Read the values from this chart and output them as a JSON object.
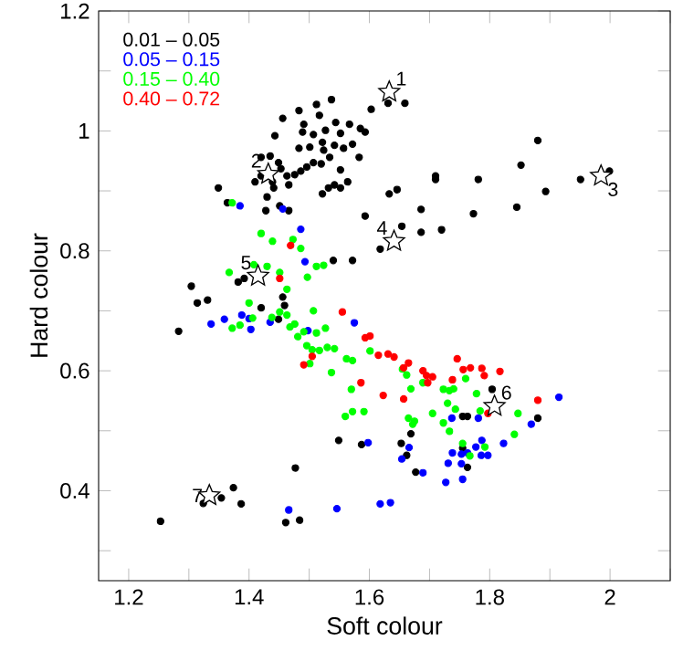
{
  "chart_data": {
    "type": "scatter",
    "xlabel": "Soft colour",
    "ylabel": "Hard colour",
    "xlim": [
      1.15,
      2.1
    ],
    "ylim": [
      0.25,
      1.2
    ],
    "xticks": [
      1.2,
      {
        "value": 1.3,
        "label": null
      },
      1.4,
      {
        "value": 1.5,
        "label": null
      },
      1.6,
      {
        "value": 1.7,
        "label": null
      },
      1.8,
      {
        "value": 1.9,
        "label": null
      },
      2,
      {
        "value": 2.1,
        "label": null
      }
    ],
    "yticks": [
      {
        "value": 0.3,
        "label": null
      },
      0.4,
      {
        "value": 0.5,
        "label": null
      },
      0.6,
      {
        "value": 0.7,
        "label": null
      },
      0.8,
      {
        "value": 0.9,
        "label": null
      },
      1,
      {
        "value": 1.1,
        "label": null
      },
      1.2
    ],
    "legend": "top left",
    "grid": false,
    "series": [
      {
        "name": "0.01 – 0.05",
        "color": "#000000",
        "marker": "circle",
        "x": [
          1.483,
          1.512,
          1.537,
          1.517,
          1.491,
          1.456,
          1.443,
          1.489,
          1.507,
          1.527,
          1.544,
          1.567,
          1.585,
          1.552,
          1.483,
          1.501,
          1.522,
          1.524,
          1.542,
          1.557,
          1.572,
          1.583,
          1.42,
          1.435,
          1.449,
          1.453,
          1.42,
          1.41,
          1.439,
          1.463,
          1.476,
          1.486,
          1.496,
          1.507,
          1.52,
          1.534,
          1.552,
          1.564,
          1.542,
          1.532,
          1.522,
          1.552,
          1.466,
          1.441,
          1.43,
          1.428,
          1.451,
          1.466,
          1.349,
          1.364,
          1.54,
          1.572,
          1.382,
          1.392,
          1.304,
          1.603,
          1.631,
          1.659,
          1.593,
          1.633,
          1.646,
          1.71,
          1.71,
          1.781,
          1.852,
          1.88,
          1.893,
          1.951,
          1.999,
          1.593,
          1.654,
          1.618,
          1.686,
          1.686,
          1.72,
          1.773,
          1.845,
          1.314,
          1.331,
          1.283,
          1.42,
          1.456,
          1.459,
          1.449,
          1.549,
          1.587,
          1.477,
          1.374,
          1.354,
          1.324,
          1.387,
          1.253,
          1.461,
          1.484,
          1.804,
          1.755,
          1.763,
          1.88,
          1.669,
          1.653,
          1.662,
          1.677,
          1.755,
          1.763
        ],
        "values": [
          1.034,
          1.044,
          1.052,
          1.026,
          1.011,
          1.021,
          0.992,
          0.998,
          0.994,
          1.001,
          1.014,
          1.011,
          1.004,
          0.996,
          0.971,
          0.973,
          0.981,
          0.968,
          0.976,
          0.971,
          0.978,
          0.956,
          0.956,
          0.958,
          0.947,
          0.937,
          0.925,
          0.915,
          0.915,
          0.925,
          0.927,
          0.933,
          0.94,
          0.947,
          0.945,
          0.956,
          0.935,
          0.915,
          0.91,
          0.905,
          0.895,
          0.905,
          0.91,
          0.905,
          0.89,
          0.867,
          0.875,
          0.867,
          0.905,
          0.88,
          0.784,
          0.784,
          0.748,
          0.754,
          0.741,
          1.036,
          1.046,
          1.046,
          0.998,
          0.895,
          0.902,
          0.925,
          0.919,
          0.919,
          0.943,
          0.984,
          0.899,
          0.919,
          0.933,
          0.858,
          0.841,
          0.803,
          0.869,
          0.831,
          0.835,
          0.862,
          0.873,
          0.713,
          0.718,
          0.666,
          0.705,
          0.723,
          0.709,
          0.686,
          0.484,
          0.477,
          0.438,
          0.405,
          0.388,
          0.379,
          0.378,
          0.349,
          0.347,
          0.351,
          0.569,
          0.524,
          0.524,
          0.521,
          0.495,
          0.479,
          0.459,
          0.431,
          0.471,
          0.439
        ]
      },
      {
        "name": "0.05 – 0.15",
        "color": "#0000ff",
        "marker": "circle",
        "x": [
          1.385,
          1.456,
          1.486,
          1.493,
          1.337,
          1.359,
          1.388,
          1.4,
          1.403,
          1.435,
          1.498,
          1.575,
          1.466,
          1.546,
          1.915,
          1.869,
          1.823,
          1.781,
          1.737,
          1.787,
          1.777,
          1.738,
          1.753,
          1.763,
          1.767,
          1.786,
          1.797,
          1.753,
          1.731,
          1.727,
          1.755,
          1.689,
          1.654,
          1.666,
          1.598,
          1.618,
          1.635
        ],
        "values": [
          0.875,
          0.87,
          0.836,
          0.782,
          0.678,
          0.686,
          0.693,
          0.687,
          0.669,
          0.681,
          0.667,
          0.68,
          0.368,
          0.37,
          0.556,
          0.511,
          0.479,
          0.521,
          0.521,
          0.484,
          0.473,
          0.463,
          0.461,
          0.463,
          null,
          0.459,
          0.459,
          0.445,
          0.446,
          0.414,
          0.419,
          0.43,
          0.453,
          0.472,
          0.48,
          0.378,
          0.38
        ]
      },
      {
        "name": "0.15 – 0.40",
        "color": "#00ff00",
        "marker": "circle",
        "x": [
          1.372,
          1.42,
          1.439,
          1.473,
          1.486,
          1.408,
          1.367,
          1.43,
          1.451,
          1.463,
          1.497,
          1.512,
          1.524,
          1.4,
          1.406,
          1.372,
          1.385,
          1.438,
          1.451,
          1.463,
          1.468,
          1.476,
          1.481,
          1.491,
          1.507,
          1.512,
          1.496,
          1.505,
          1.517,
          1.53,
          1.542,
          1.537,
          1.562,
          1.572,
          1.57,
          1.56,
          1.572,
          1.591,
          1.527,
          1.501,
          1.601,
          1.655,
          1.662,
          1.689,
          1.669,
          1.723,
          1.733,
          1.74,
          1.778,
          1.76,
          1.73,
          1.743,
          1.784,
          1.665,
          1.675,
          1.672,
          1.705,
          1.723,
          1.733,
          1.755,
          1.767,
          1.847,
          1.841,
          1.792
        ],
        "values": [
          0.88,
          0.829,
          0.816,
          0.819,
          0.804,
          0.777,
          0.764,
          0.774,
          0.764,
          0.736,
          0.756,
          0.774,
          0.776,
          0.713,
          0.688,
          0.671,
          0.676,
          0.689,
          0.698,
          0.693,
          0.673,
          0.678,
          0.657,
          0.665,
          0.7,
          0.663,
          0.642,
          0.635,
          0.634,
          0.639,
          0.637,
          0.597,
          0.62,
          0.617,
          0.569,
          0.524,
          0.532,
          0.532,
          0.671,
          0.612,
          0.633,
          0.603,
          0.593,
          0.58,
          0.57,
          0.569,
          0.567,
          0.57,
          0.562,
          0.587,
          0.546,
          0.536,
          0.533,
          0.521,
          0.516,
          0.511,
          0.529,
          0.513,
          0.499,
          0.479,
          0.458,
          0.529,
          0.494,
          0.473
        ]
      },
      {
        "name": "0.40 – 0.72",
        "color": "#ff0000",
        "marker": "circle",
        "x": [
          1.469,
          1.451,
          1.555,
          1.491,
          1.505,
          1.586,
          1.593,
          1.601,
          1.615,
          1.631,
          1.641,
          1.657,
          1.665,
          1.689,
          1.695,
          1.705,
          1.738,
          1.746,
          1.756,
          1.768,
          1.787,
          1.791,
          1.817,
          1.623,
          1.657,
          1.797,
          1.88,
          1.697
        ],
        "values": [
          0.809,
          0.754,
          0.698,
          0.61,
          0.624,
          0.58,
          0.655,
          0.658,
          0.626,
          0.628,
          0.623,
          0.605,
          0.613,
          0.6,
          0.592,
          0.59,
          0.585,
          0.62,
          0.602,
          0.605,
          0.604,
          0.592,
          0.599,
          0.559,
          0.553,
          0.529,
          0.551,
          0.58
        ]
      },
      {
        "color": "#000000",
        "marker": "star",
        "x": [
          1.633,
          1.432,
          1.985,
          1.641,
          1.415,
          1.808,
          1.334
        ],
        "values": [
          1.065,
          0.928,
          0.925,
          0.816,
          0.758,
          0.541,
          0.392
        ]
      }
    ],
    "annotations": [
      {
        "text": "1",
        "x": 1.633,
        "y": 1.065
      },
      {
        "text": "2",
        "x": 1.432,
        "y": 0.928
      },
      {
        "text": "3",
        "x": 1.985,
        "y": 0.925
      },
      {
        "text": "4",
        "x": 1.641,
        "y": 0.816
      },
      {
        "text": "5",
        "x": 1.415,
        "y": 0.758
      },
      {
        "text": "6",
        "x": 1.808,
        "y": 0.541
      },
      {
        "text": "7",
        "x": 1.334,
        "y": 0.392
      }
    ]
  }
}
